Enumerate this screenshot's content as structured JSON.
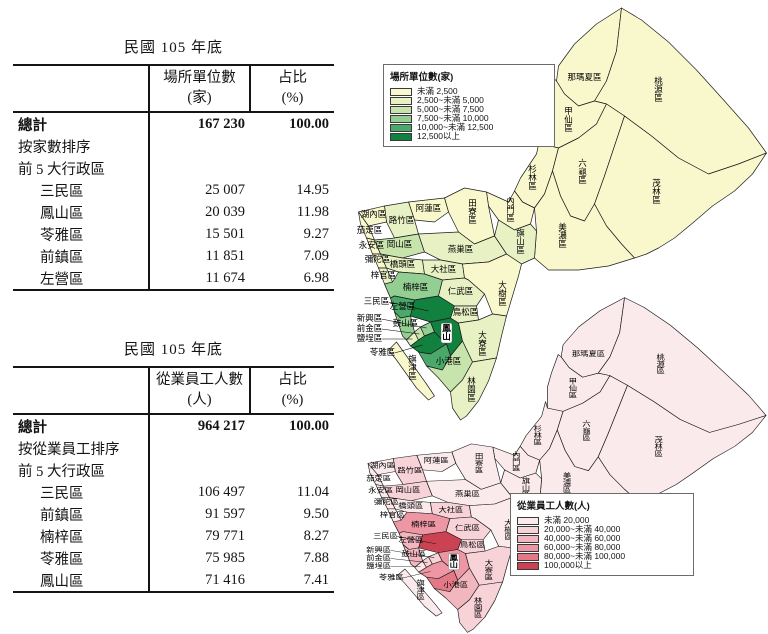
{
  "tables": [
    {
      "caption": "民國 105 年底",
      "value_header": "場所單位數",
      "value_unit": "(家)",
      "pct_header": "占比",
      "pct_unit": "(%)",
      "total_label": "總計",
      "total_value": "167 230",
      "total_pct": "100.00",
      "sort_label": "按家數排序",
      "scope_label": "前 5 大行政區",
      "rows": [
        {
          "name": "三民區",
          "value": "25 007",
          "pct": "14.95"
        },
        {
          "name": "鳳山區",
          "value": "20 039",
          "pct": "11.98"
        },
        {
          "name": "苓雅區",
          "value": "15 501",
          "pct": "9.27"
        },
        {
          "name": "前鎮區",
          "value": "11 851",
          "pct": "7.09"
        },
        {
          "name": "左營區",
          "value": "11 674",
          "pct": "6.98"
        }
      ]
    },
    {
      "caption": "民國 105 年底",
      "value_header": "從業員工人數",
      "value_unit": "(人)",
      "pct_header": "占比",
      "pct_unit": "(%)",
      "total_label": "總計",
      "total_value": "964 217",
      "total_pct": "100.00",
      "sort_label": "按從業員工排序",
      "scope_label": "前 5 大行政區",
      "rows": [
        {
          "name": "三民區",
          "value": "106 497",
          "pct": "11.04"
        },
        {
          "name": "前鎮區",
          "value": "91 597",
          "pct": "9.50"
        },
        {
          "name": "楠梓區",
          "value": "79 771",
          "pct": "8.27"
        },
        {
          "name": "苓雅區",
          "value": "75 985",
          "pct": "7.88"
        },
        {
          "name": "鳳山區",
          "value": "71 416",
          "pct": "7.41"
        }
      ]
    }
  ],
  "maps": [
    {
      "legend_title": "場所單位數(家)",
      "classes": [
        {
          "label": "未滿 2,500",
          "color": "#f9f8cd"
        },
        {
          "label": "2,500~未滿 5,000",
          "color": "#e7f1c4"
        },
        {
          "label": "5,000~未滿 7,500",
          "color": "#c6e4ab"
        },
        {
          "label": "7,500~未滿 10,000",
          "color": "#93ce92"
        },
        {
          "label": "10,000~未滿 12,500",
          "color": "#4aa96a"
        },
        {
          "label": "12,500以上",
          "color": "#12813f"
        }
      ],
      "white_labels": [
        "左營區"
      ],
      "district_levels": {
        "那瑪夏區": 1,
        "桃源區": 1,
        "甲仙區": 1,
        "六龜區": 1,
        "杉林區": 1,
        "茂林區": 1,
        "美濃區": 1,
        "內門區": 1,
        "旗山區": 2,
        "田寮區": 1,
        "阿蓮區": 1,
        "湖內區": 1,
        "茄萣區": 1,
        "路竹區": 2,
        "永安區": 1,
        "岡山區": 3,
        "彌陀區": 1,
        "燕巢區": 2,
        "橋頭區": 2,
        "梓官區": 2,
        "大社區": 2,
        "大樹區": 1,
        "楠梓區": 4,
        "仁武區": 2,
        "左營區": 5,
        "三民區": 6,
        "鼓山區": 4,
        "鹽埕區": 2,
        "前金區": 3,
        "新興區": 4,
        "苓雅區": 6,
        "前鎮區": 5,
        "旗津區": 1,
        "小港區": 3,
        "鳳山區": 6,
        "鳥松區": 2,
        "大寮區": 2,
        "林園區": 2
      }
    },
    {
      "legend_title": "從業員工人數(人)",
      "classes": [
        {
          "label": "未滿 20,000",
          "color": "#fbeaec"
        },
        {
          "label": "20,000~未滿 40,000",
          "color": "#f7d3d8"
        },
        {
          "label": "40,000~未滿 60,000",
          "color": "#f2b6bf"
        },
        {
          "label": "60,000~未滿 80,000",
          "color": "#ec97a3"
        },
        {
          "label": "80,000~未滿 100,000",
          "color": "#e57886"
        },
        {
          "label": "100,000以上",
          "color": "#cb4352"
        }
      ],
      "white_labels": [],
      "district_levels": {
        "那瑪夏區": 1,
        "桃源區": 1,
        "甲仙區": 1,
        "六龜區": 1,
        "杉林區": 1,
        "茂林區": 1,
        "美濃區": 1,
        "內門區": 1,
        "旗山區": 1,
        "田寮區": 1,
        "阿蓮區": 1,
        "湖內區": 1,
        "茄萣區": 1,
        "路竹區": 2,
        "永安區": 1,
        "岡山區": 2,
        "彌陀區": 1,
        "燕巢區": 1,
        "橋頭區": 1,
        "梓官區": 1,
        "大社區": 2,
        "大樹區": 1,
        "楠梓區": 4,
        "仁武區": 2,
        "左營區": 3,
        "三民區": 6,
        "鼓山區": 3,
        "鹽埕區": 1,
        "前金區": 2,
        "新興區": 2,
        "苓雅區": 4,
        "前鎮區": 5,
        "旗津區": 1,
        "小港區": 3,
        "鳳山區": 4,
        "鳥松區": 2,
        "大寮區": 2,
        "林園區": 2
      }
    }
  ]
}
